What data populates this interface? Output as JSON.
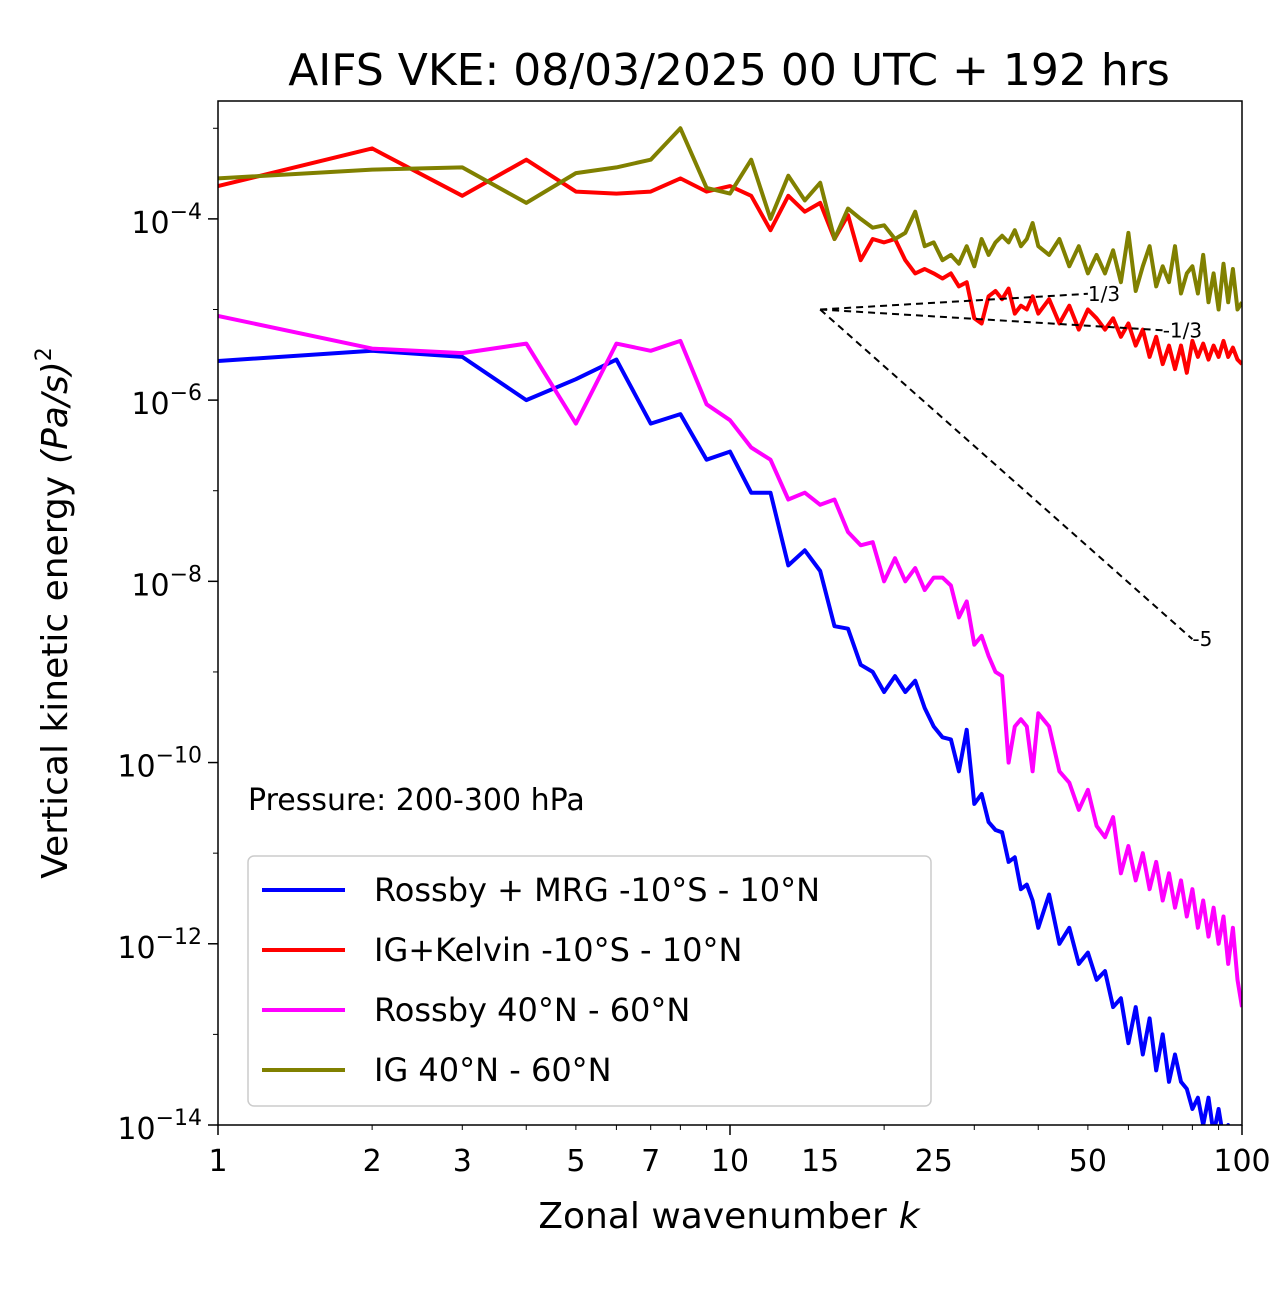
{
  "chart_data": {
    "type": "line",
    "title": "AIFS VKE: 08/03/2025 00 UTC + 192 hrs",
    "xlabel": "Zonal wavenumber",
    "xlabel_italic": "k",
    "ylabel": "Vertical kinetic energy",
    "ylabel_units": "(Pa/s)",
    "ylabel_power": "2",
    "xscale": "log",
    "yscale": "log",
    "xlim": [
      1,
      100
    ],
    "ylim": [
      1e-14,
      0.002
    ],
    "xticks": [
      {
        "value": 1,
        "label": "1"
      },
      {
        "value": 2,
        "label": "2"
      },
      {
        "value": 3,
        "label": "3"
      },
      {
        "value": 5,
        "label": "5"
      },
      {
        "value": 7,
        "label": "7"
      },
      {
        "value": 10,
        "label": "10"
      },
      {
        "value": 15,
        "label": "15"
      },
      {
        "value": 25,
        "label": "25"
      },
      {
        "value": 50,
        "label": "50"
      },
      {
        "value": 100,
        "label": "100"
      }
    ],
    "yticks": [
      {
        "exp": -4,
        "base": "10",
        "sup": "−4"
      },
      {
        "exp": -6,
        "base": "10",
        "sup": "−6"
      },
      {
        "exp": -8,
        "base": "10",
        "sup": "−8"
      },
      {
        "exp": -10,
        "base": "10",
        "sup": "−10"
      },
      {
        "exp": -12,
        "base": "10",
        "sup": "−12"
      },
      {
        "exp": -14,
        "base": "10",
        "sup": "−14"
      }
    ],
    "grid": false,
    "legend_placement": "lower-left",
    "annotation": "Pressure: 200-300 hPa",
    "reference_slopes": [
      {
        "label": "1/3",
        "slope": 0.3333,
        "from": [
          15,
          1e-05
        ],
        "to": [
          50,
          1.49e-05
        ]
      },
      {
        "label": "-1/3",
        "slope": -0.3333,
        "from": [
          15,
          1e-05
        ],
        "to": [
          70,
          5.9e-06
        ]
      },
      {
        "label": "-5",
        "slope": -5,
        "from": [
          15,
          1e-05
        ],
        "to": [
          80,
          2.3e-09
        ]
      }
    ],
    "series": [
      {
        "name": "Rossby + MRG -10°S - 10°N",
        "color": "#0000ff",
        "x": [
          1,
          2,
          3,
          4,
          5,
          6,
          7,
          8,
          9,
          10,
          11,
          12,
          13,
          14,
          15,
          16,
          17,
          18,
          19,
          20,
          21,
          22,
          23,
          24,
          25,
          26,
          27,
          28,
          29,
          30,
          31,
          32,
          33,
          34,
          35,
          36,
          37,
          38,
          39,
          40,
          42,
          44,
          46,
          48,
          50,
          52,
          54,
          56,
          58,
          60,
          62,
          64,
          66,
          68,
          70,
          72,
          74,
          76,
          78,
          80,
          82,
          84,
          86,
          88,
          90,
          92,
          94,
          96,
          98,
          100
        ],
        "y": [
          2.7e-06,
          3.5e-06,
          3e-06,
          1e-06,
          1.7e-06,
          2.8e-06,
          5.5e-07,
          7e-07,
          2.2e-07,
          2.7e-07,
          9.5e-08,
          9.5e-08,
          1.5e-08,
          2.2e-08,
          1.3e-08,
          3.2e-09,
          3e-09,
          1.2e-09,
          1e-09,
          6e-10,
          9e-10,
          6e-10,
          8e-10,
          4e-10,
          2.5e-10,
          1.9e-10,
          1.8e-10,
          8e-11,
          2.3e-10,
          3.5e-11,
          4.5e-11,
          2.2e-11,
          1.8e-11,
          1.7e-11,
          8e-12,
          9e-12,
          4e-12,
          4.5e-12,
          3e-12,
          1.5e-12,
          3.5e-12,
          1e-12,
          1.5e-12,
          6e-13,
          8e-13,
          4e-13,
          5e-13,
          2e-13,
          2.5e-13,
          8e-14,
          2e-13,
          6e-14,
          1.5e-13,
          4e-14,
          1e-13,
          3e-14,
          6e-14,
          3e-14,
          2.5e-14,
          1.5e-14,
          2e-14,
          1e-14,
          2e-14,
          8e-15,
          1.5e-14,
          7e-15,
          1e-14,
          5e-15,
          8e-15,
          1e-14
        ]
      },
      {
        "name": "IG+Kelvin -10°S - 10°N",
        "color": "#ff0000",
        "x": [
          1,
          2,
          3,
          4,
          5,
          6,
          7,
          8,
          9,
          10,
          11,
          12,
          13,
          14,
          15,
          16,
          17,
          18,
          19,
          20,
          21,
          22,
          23,
          24,
          25,
          26,
          27,
          28,
          29,
          30,
          31,
          32,
          33,
          34,
          35,
          36,
          37,
          38,
          39,
          40,
          42,
          44,
          46,
          48,
          50,
          52,
          54,
          56,
          58,
          60,
          62,
          64,
          66,
          68,
          70,
          72,
          74,
          76,
          78,
          80,
          82,
          84,
          86,
          88,
          90,
          92,
          94,
          96,
          98,
          100
        ],
        "y": [
          0.00023,
          0.0006,
          0.00018,
          0.00045,
          0.0002,
          0.00019,
          0.0002,
          0.00028,
          0.0002,
          0.00023,
          0.00018,
          7.5e-05,
          0.00018,
          0.00012,
          0.00015,
          6e-05,
          0.00011,
          3.5e-05,
          6e-05,
          5.5e-05,
          6e-05,
          3.5e-05,
          2.5e-05,
          2.8e-05,
          2.5e-05,
          2.2e-05,
          2.5e-05,
          1.8e-05,
          2e-05,
          8e-06,
          7e-06,
          1.4e-05,
          1.6e-05,
          1.3e-05,
          1.7e-05,
          9e-06,
          1.1e-05,
          1e-05,
          1.4e-05,
          9e-06,
          1.3e-05,
          7e-06,
          1.1e-05,
          6e-06,
          1e-05,
          8e-06,
          6e-06,
          8e-06,
          5e-06,
          7e-06,
          4e-06,
          6e-06,
          3e-06,
          5e-06,
          2.5e-06,
          4e-06,
          2.2e-06,
          4e-06,
          2e-06,
          4.5e-06,
          3e-06,
          4.2e-06,
          2.8e-06,
          4e-06,
          3e-06,
          4.5e-06,
          3e-06,
          3.8e-06,
          2.8e-06,
          2.5e-06
        ]
      },
      {
        "name": "Rossby 40°N - 60°N",
        "color": "#ff00ff",
        "x": [
          1,
          2,
          3,
          4,
          5,
          6,
          7,
          8,
          9,
          10,
          11,
          12,
          13,
          14,
          15,
          16,
          17,
          18,
          19,
          20,
          21,
          22,
          23,
          24,
          25,
          26,
          27,
          28,
          29,
          30,
          31,
          32,
          33,
          34,
          35,
          36,
          37,
          38,
          39,
          40,
          42,
          44,
          46,
          48,
          50,
          52,
          54,
          56,
          58,
          60,
          62,
          64,
          66,
          68,
          70,
          72,
          74,
          76,
          78,
          80,
          82,
          84,
          86,
          88,
          90,
          92,
          94,
          96,
          98,
          100
        ],
        "y": [
          8.5e-06,
          3.7e-06,
          3.3e-06,
          4.2e-06,
          5.5e-07,
          4.2e-06,
          3.5e-06,
          4.5e-06,
          9e-07,
          6e-07,
          3e-07,
          2.2e-07,
          8e-08,
          9.5e-08,
          7e-08,
          8e-08,
          3.5e-08,
          2.5e-08,
          2.7e-08,
          1e-08,
          1.8e-08,
          1e-08,
          1.4e-08,
          8e-09,
          1.1e-08,
          1.1e-08,
          9e-09,
          4e-09,
          6e-09,
          2e-09,
          2.5e-09,
          1.5e-09,
          1e-09,
          9e-10,
          1e-10,
          2.5e-10,
          3e-10,
          2.5e-10,
          8e-11,
          3.5e-10,
          2.5e-10,
          8e-11,
          6e-11,
          3e-11,
          5e-11,
          2e-11,
          1.5e-11,
          2.5e-11,
          6e-12,
          1.2e-11,
          5e-12,
          1e-11,
          4e-12,
          8e-12,
          3e-12,
          6e-12,
          2.5e-12,
          5e-12,
          2e-12,
          4e-12,
          1.5e-12,
          3e-12,
          1.2e-12,
          2.5e-12,
          1e-12,
          2e-12,
          6e-13,
          1.5e-12,
          4e-13,
          2e-13
        ]
      },
      {
        "name": "IG 40°N - 60°N",
        "color": "#808000",
        "x": [
          1,
          2,
          3,
          4,
          5,
          6,
          7,
          8,
          9,
          10,
          11,
          12,
          13,
          14,
          15,
          16,
          17,
          18,
          19,
          20,
          21,
          22,
          23,
          24,
          25,
          26,
          27,
          28,
          29,
          30,
          31,
          32,
          33,
          34,
          35,
          36,
          37,
          38,
          39,
          40,
          42,
          44,
          46,
          48,
          50,
          52,
          54,
          56,
          58,
          60,
          62,
          64,
          66,
          68,
          70,
          72,
          74,
          76,
          78,
          80,
          82,
          84,
          86,
          88,
          90,
          92,
          94,
          96,
          98,
          100
        ],
        "y": [
          0.00028,
          0.00035,
          0.00037,
          0.00015,
          0.00032,
          0.00037,
          0.00045,
          0.001,
          0.00022,
          0.00019,
          0.00045,
          0.0001,
          0.0003,
          0.00016,
          0.00025,
          6e-05,
          0.00013,
          0.0001,
          8e-05,
          8.5e-05,
          6e-05,
          7e-05,
          0.00012,
          5e-05,
          5.5e-05,
          3.5e-05,
          4e-05,
          3.2e-05,
          5e-05,
          3e-05,
          6e-05,
          4e-05,
          5.5e-05,
          6.5e-05,
          5.5e-05,
          7.5e-05,
          5e-05,
          6e-05,
          9e-05,
          5e-05,
          4e-05,
          6e-05,
          3e-05,
          5e-05,
          2.5e-05,
          4e-05,
          2.5e-05,
          4.5e-05,
          2e-05,
          7e-05,
          1.6e-05,
          3e-05,
          5e-05,
          1.8e-05,
          3e-05,
          2e-05,
          5e-05,
          1.5e-05,
          2.5e-05,
          3e-05,
          1.5e-05,
          4e-05,
          1.2e-05,
          2.5e-05,
          1e-05,
          3.2e-05,
          1.2e-05,
          2.8e-05,
          1e-05,
          1.2e-05
        ]
      }
    ]
  }
}
